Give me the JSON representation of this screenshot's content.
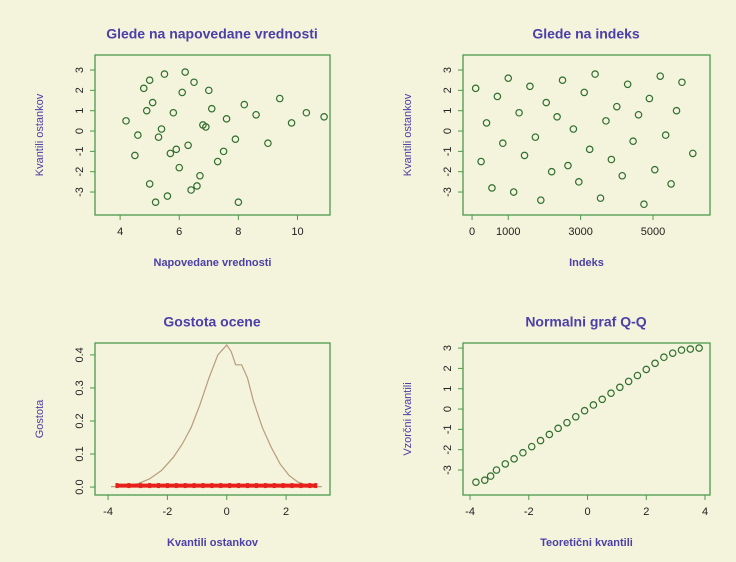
{
  "chart_data": [
    {
      "type": "scatter",
      "title": "Glede na napovedane vrednosti",
      "xlabel": "Napovedane vrednosti",
      "ylabel": "Kvantili ostankov",
      "color": "#2f6e2f",
      "x": [
        4.2,
        4.5,
        4.8,
        5.0,
        5.1,
        5.3,
        5.5,
        5.6,
        5.8,
        6.0,
        6.1,
        6.3,
        6.5,
        6.7,
        6.9,
        7.1,
        7.3,
        7.6,
        7.9,
        8.2,
        8.6,
        9.0,
        9.4,
        9.8,
        10.3,
        10.9,
        4.6,
        5.2,
        5.4,
        5.9,
        6.2,
        6.6,
        7.0,
        4.9,
        5.7,
        6.4,
        7.5,
        8.0,
        5.0,
        6.8
      ],
      "values": [
        0.5,
        -1.2,
        2.1,
        -2.6,
        1.4,
        -0.3,
        2.8,
        -3.2,
        0.9,
        -1.8,
        1.9,
        -0.7,
        2.4,
        -2.2,
        0.2,
        1.1,
        -1.5,
        0.6,
        -0.4,
        1.3,
        0.8,
        -0.6,
        1.6,
        0.4,
        0.9,
        0.7,
        -0.2,
        -3.5,
        0.1,
        -0.9,
        2.9,
        -2.7,
        2.0,
        1.0,
        -1.1,
        -2.9,
        -1.0,
        -3.5,
        2.5,
        0.3
      ],
      "xlim": [
        3.15,
        11.1
      ],
      "ylim": [
        -4.13,
        3.74
      ],
      "xticks": [
        4,
        6,
        8,
        10
      ],
      "yticks": [
        -3,
        -2,
        -1,
        0,
        1,
        2,
        3
      ]
    },
    {
      "type": "scatter",
      "title": "Glede na indeks",
      "xlabel": "Indeks",
      "ylabel": "Kvantili ostankov",
      "color": "#2f6e2f",
      "x": [
        100,
        250,
        400,
        550,
        700,
        850,
        1000,
        1150,
        1300,
        1450,
        1600,
        1750,
        1900,
        2050,
        2200,
        2350,
        2500,
        2650,
        2800,
        2950,
        3100,
        3250,
        3400,
        3550,
        3700,
        3850,
        4000,
        4150,
        4300,
        4450,
        4600,
        4750,
        4900,
        5050,
        5200,
        5350,
        5500,
        5650,
        5800,
        6100
      ],
      "values": [
        2.1,
        -1.5,
        0.4,
        -2.8,
        1.7,
        -0.6,
        2.6,
        -3.0,
        0.9,
        -1.2,
        2.2,
        -0.3,
        -3.4,
        1.4,
        -2.0,
        0.7,
        2.5,
        -1.7,
        0.1,
        -2.5,
        1.9,
        -0.9,
        2.8,
        -3.3,
        0.5,
        -1.4,
        1.2,
        -2.2,
        2.3,
        -0.5,
        0.8,
        -3.6,
        1.6,
        -1.9,
        2.7,
        -0.2,
        -2.6,
        1.0,
        2.4,
        -1.1
      ],
      "xlim": [
        -250,
        6575
      ],
      "ylim": [
        -4.13,
        3.74
      ],
      "xticks": [
        0,
        1000,
        3000,
        5000
      ],
      "yticks": [
        -3,
        -2,
        -1,
        0,
        1,
        2,
        3
      ]
    },
    {
      "type": "line",
      "title": "Gostota ocene",
      "xlabel": "Kvantili ostankov",
      "ylabel": "Gostota",
      "color": "#b89c7c",
      "rug_color": "#e8201c",
      "x": [
        -3.9,
        -3.5,
        -3.0,
        -2.6,
        -2.2,
        -1.8,
        -1.5,
        -1.2,
        -0.9,
        -0.6,
        -0.3,
        -0.1,
        0.0,
        0.15,
        0.3,
        0.5,
        0.7,
        0.9,
        1.2,
        1.5,
        1.8,
        2.1,
        2.4,
        2.7,
        3.0,
        3.2
      ],
      "values": [
        0.001,
        0.003,
        0.01,
        0.025,
        0.05,
        0.09,
        0.13,
        0.18,
        0.25,
        0.33,
        0.4,
        0.42,
        0.43,
        0.41,
        0.37,
        0.37,
        0.33,
        0.26,
        0.18,
        0.12,
        0.07,
        0.035,
        0.015,
        0.006,
        0.002,
        0.001
      ],
      "rug": [
        -3.7,
        -3.3,
        -2.9,
        -2.6,
        -2.3,
        -2.0,
        -1.7,
        -1.4,
        -1.1,
        -0.8,
        -0.5,
        -0.2,
        0.1,
        0.4,
        0.7,
        1.0,
        1.3,
        1.6,
        1.9,
        2.2,
        2.5,
        2.8,
        3.0
      ],
      "xlim": [
        -4.44,
        3.48
      ],
      "ylim": [
        -0.024,
        0.436
      ],
      "xticks": [
        -4,
        -2,
        0,
        2
      ],
      "yticks": [
        {
          "value": 0,
          "label": "0.0"
        },
        {
          "value": 0.1,
          "label": "0.1"
        },
        {
          "value": 0.2,
          "label": "0.2"
        },
        {
          "value": 0.3,
          "label": "0.3"
        },
        {
          "value": 0.4,
          "label": "0.4"
        }
      ]
    },
    {
      "type": "scatter",
      "title": "Normalni graf Q-Q",
      "xlabel": "Teoretični kvantili",
      "ylabel": "Vzorčni kvantili",
      "color": "#2f6e2f",
      "x": [
        -3.8,
        -3.5,
        -3.3,
        -3.1,
        -2.8,
        -2.5,
        -2.2,
        -1.9,
        -1.6,
        -1.3,
        -1.0,
        -0.7,
        -0.4,
        -0.1,
        0.2,
        0.5,
        0.8,
        1.1,
        1.4,
        1.7,
        2.0,
        2.3,
        2.6,
        2.9,
        3.2,
        3.5,
        3.8
      ],
      "values": [
        -3.6,
        -3.5,
        -3.3,
        -3.0,
        -2.7,
        -2.45,
        -2.15,
        -1.85,
        -1.55,
        -1.25,
        -0.95,
        -0.67,
        -0.38,
        -0.08,
        0.2,
        0.48,
        0.78,
        1.07,
        1.36,
        1.65,
        1.95,
        2.25,
        2.55,
        2.75,
        2.9,
        2.95,
        3.0
      ],
      "xlim": [
        -4.24,
        4.17
      ],
      "ylim": [
        -4.23,
        3.25
      ],
      "xticks": [
        -4,
        -2,
        0,
        2,
        4
      ],
      "yticks": [
        -3,
        -2,
        -1,
        0,
        1,
        2,
        3
      ]
    }
  ]
}
